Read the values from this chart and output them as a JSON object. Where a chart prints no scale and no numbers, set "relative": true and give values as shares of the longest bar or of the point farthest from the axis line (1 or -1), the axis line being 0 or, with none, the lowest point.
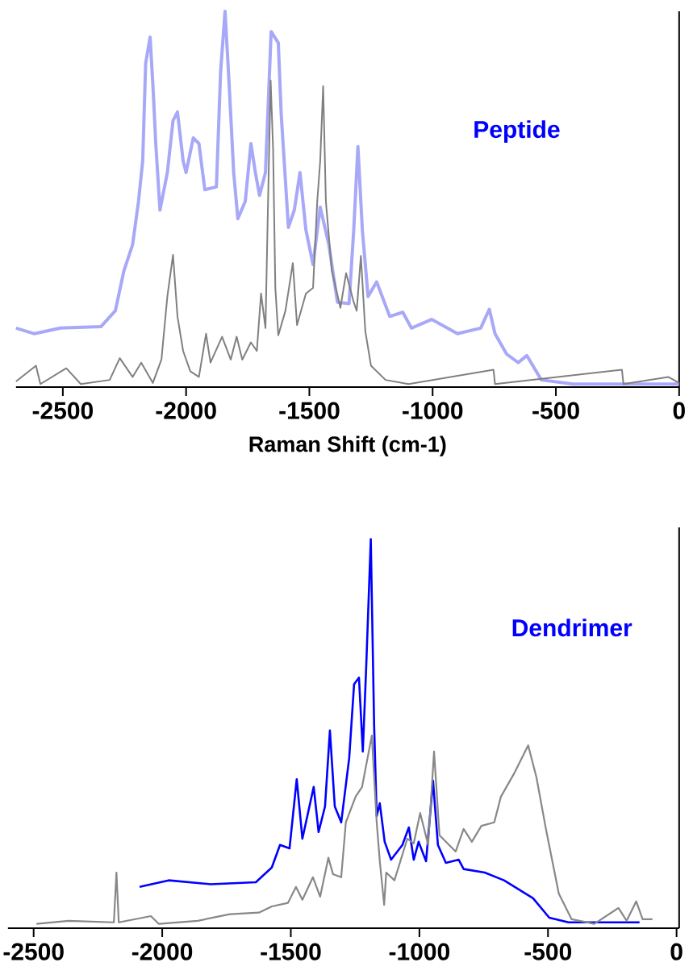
{
  "chart_data": [
    {
      "type": "line",
      "relative": true,
      "xlim": [
        -2690,
        0
      ],
      "xticks": [
        -2500,
        -2000,
        -1500,
        -1000,
        -500,
        0
      ],
      "xlabel": "Raman Shift (cm-1)",
      "annotations": [
        "Peptide"
      ],
      "series": [
        {
          "color": "#a8a8f8",
          "x": [
            -2690,
            -2615,
            -2509,
            -2345,
            -2287,
            -2252,
            -2217,
            -2193,
            -2176,
            -2164,
            -2146,
            -2135,
            -2123,
            -2106,
            -2076,
            -2053,
            -2035,
            -2012,
            -2000,
            -1971,
            -1948,
            -1924,
            -1877,
            -1860,
            -1842,
            -1825,
            -1807,
            -1790,
            -1760,
            -1737,
            -1719,
            -1702,
            -1678,
            -1655,
            -1626,
            -1614,
            -1585,
            -1561,
            -1538,
            -1514,
            -1485,
            -1456,
            -1421,
            -1386,
            -1339,
            -1320,
            -1303,
            -1285,
            -1262,
            -1227,
            -1174,
            -1121,
            -1086,
            -1004,
            -899,
            -805,
            -770,
            -747,
            -700,
            -653,
            -618,
            -559,
            -431,
            0
          ],
          "values": [
            0.157,
            0.142,
            0.157,
            0.161,
            0.203,
            0.31,
            0.379,
            0.494,
            0.602,
            0.862,
            0.931,
            0.808,
            0.648,
            0.471,
            0.571,
            0.709,
            0.732,
            0.602,
            0.571,
            0.663,
            0.648,
            0.525,
            0.533,
            0.839,
            1.0,
            0.801,
            0.571,
            0.448,
            0.494,
            0.648,
            0.571,
            0.51,
            0.571,
            0.946,
            0.916,
            0.724,
            0.425,
            0.471,
            0.571,
            0.418,
            0.326,
            0.479,
            0.379,
            0.226,
            0.222,
            0.418,
            0.64,
            0.418,
            0.241,
            0.28,
            0.188,
            0.199,
            0.157,
            0.18,
            0.142,
            0.157,
            0.207,
            0.142,
            0.088,
            0.065,
            0.084,
            0.019,
            0.008,
            0.008
          ]
        },
        {
          "color": "#808080",
          "x": [
            -2690,
            -2609,
            -2591,
            -2486,
            -2427,
            -2310,
            -2269,
            -2217,
            -2182,
            -2135,
            -2100,
            -2076,
            -2053,
            -2035,
            -2012,
            -1983,
            -1948,
            -1919,
            -1901,
            -1854,
            -1819,
            -1795,
            -1772,
            -1737,
            -1713,
            -1696,
            -1678,
            -1669,
            -1657,
            -1647,
            -1638,
            -1626,
            -1597,
            -1567,
            -1550,
            -1514,
            -1485,
            -1468,
            -1456,
            -1444,
            -1433,
            -1409,
            -1374,
            -1351,
            -1320,
            -1308,
            -1291,
            -1273,
            -1250,
            -1191,
            -1098,
            -753,
            -747,
            -232,
            -226,
            -44,
            0
          ],
          "values": [
            0.015,
            0.057,
            0.008,
            0.05,
            0.008,
            0.019,
            0.077,
            0.027,
            0.065,
            0.011,
            0.073,
            0.241,
            0.352,
            0.188,
            0.096,
            0.042,
            0.027,
            0.142,
            0.065,
            0.134,
            0.073,
            0.134,
            0.073,
            0.119,
            0.096,
            0.249,
            0.157,
            0.448,
            0.816,
            0.632,
            0.264,
            0.138,
            0.203,
            0.33,
            0.165,
            0.249,
            0.264,
            0.494,
            0.602,
            0.801,
            0.494,
            0.31,
            0.211,
            0.303,
            0.226,
            0.203,
            0.349,
            0.149,
            0.057,
            0.019,
            0.008,
            0.046,
            0.008,
            0.046,
            0.008,
            0.027,
            0.011
          ]
        }
      ]
    },
    {
      "type": "line",
      "relative": true,
      "xlim": [
        -2600,
        10
      ],
      "xticks": [
        -2500,
        -2000,
        -1500,
        -1000,
        -500,
        0
      ],
      "annotations": [
        "Dendrimer"
      ],
      "series": [
        {
          "color": "#0000ff",
          "x": [
            -2088,
            -1975,
            -1812,
            -1636,
            -1574,
            -1542,
            -1505,
            -1477,
            -1455,
            -1411,
            -1392,
            -1367,
            -1348,
            -1329,
            -1304,
            -1273,
            -1254,
            -1235,
            -1220,
            -1207,
            -1189,
            -1176,
            -1166,
            -1154,
            -1135,
            -1110,
            -1066,
            -1041,
            -1022,
            -1003,
            -974,
            -947,
            -928,
            -897,
            -847,
            -828,
            -746,
            -671,
            -558,
            -495,
            -420,
            -144
          ],
          "values": [
            0.106,
            0.123,
            0.113,
            0.118,
            0.156,
            0.214,
            0.205,
            0.383,
            0.23,
            0.363,
            0.247,
            0.313,
            0.508,
            0.313,
            0.272,
            0.437,
            0.627,
            0.644,
            0.454,
            0.669,
            1.0,
            0.52,
            0.288,
            0.321,
            0.222,
            0.176,
            0.214,
            0.259,
            0.176,
            0.222,
            0.172,
            0.379,
            0.214,
            0.168,
            0.176,
            0.152,
            0.143,
            0.123,
            0.077,
            0.027,
            0.015,
            0.015
          ]
        },
        {
          "color": "#888888",
          "x": [
            -2489,
            -2364,
            -2188,
            -2178,
            -2169,
            -2044,
            -2013,
            -1862,
            -1737,
            -1624,
            -1574,
            -1511,
            -1480,
            -1455,
            -1414,
            -1386,
            -1354,
            -1336,
            -1304,
            -1286,
            -1248,
            -1223,
            -1185,
            -1166,
            -1154,
            -1137,
            -1129,
            -1097,
            -1047,
            -1022,
            -997,
            -966,
            -943,
            -922,
            -859,
            -828,
            -796,
            -759,
            -709,
            -683,
            -633,
            -577,
            -545,
            -508,
            -458,
            -408,
            -320,
            -226,
            -194,
            -157,
            -132,
            -94
          ],
          "values": [
            0.011,
            0.019,
            0.015,
            0.143,
            0.015,
            0.031,
            0.011,
            0.019,
            0.036,
            0.04,
            0.056,
            0.065,
            0.106,
            0.073,
            0.131,
            0.081,
            0.181,
            0.139,
            0.131,
            0.272,
            0.338,
            0.363,
            0.495,
            0.272,
            0.172,
            0.06,
            0.143,
            0.123,
            0.23,
            0.218,
            0.296,
            0.214,
            0.454,
            0.239,
            0.197,
            0.255,
            0.222,
            0.263,
            0.272,
            0.338,
            0.396,
            0.47,
            0.388,
            0.255,
            0.089,
            0.023,
            0.011,
            0.052,
            0.019,
            0.069,
            0.023,
            0.023
          ]
        }
      ]
    }
  ]
}
